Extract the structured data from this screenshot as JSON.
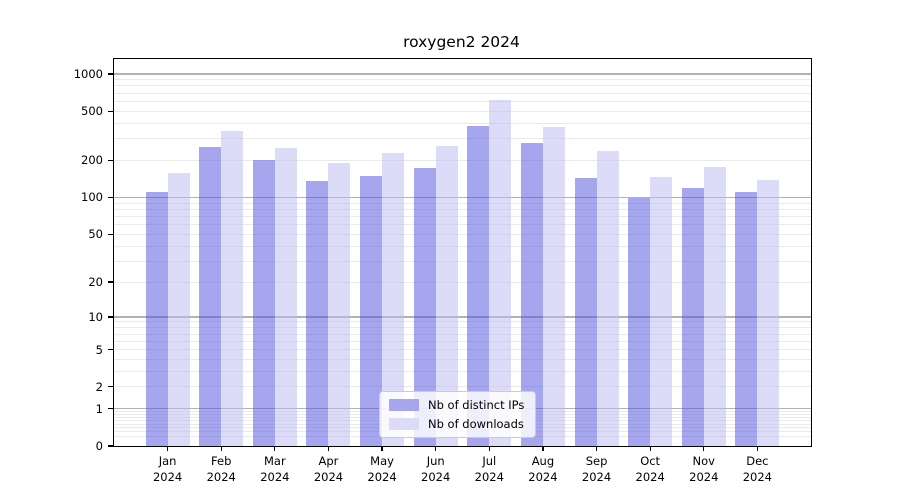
{
  "title": "roxygen2 2024",
  "chart_data": {
    "type": "bar",
    "title": "roxygen2 2024",
    "year": "2024",
    "categories": [
      "Jan",
      "Feb",
      "Mar",
      "Apr",
      "May",
      "Jun",
      "Jul",
      "Aug",
      "Sep",
      "Oct",
      "Nov",
      "Dec"
    ],
    "series": [
      {
        "name": "Nb of distinct IPs",
        "color": "#a6a6ef",
        "fill": "rgba(77,77,223,0.5)",
        "values": [
          110,
          255,
          200,
          137,
          150,
          174,
          380,
          275,
          143,
          100,
          120,
          110
        ]
      },
      {
        "name": "Nb of downloads",
        "color": "#dcdcf8",
        "fill": "rgba(185,185,241,0.5)",
        "values": [
          157,
          345,
          250,
          189,
          230,
          262,
          615,
          370,
          238,
          148,
          176,
          140
        ]
      }
    ],
    "y_ticks": [
      0,
      1,
      2,
      5,
      10,
      20,
      50,
      100,
      200,
      500,
      1000
    ],
    "y_major_gridlines": [
      1,
      10,
      100,
      1000
    ],
    "scale": "log1p",
    "ylim": [
      0,
      1320
    ],
    "grid": "both",
    "legend_position": "lower-center",
    "colors": {
      "major_grid": "#b2b2b2",
      "minor_grid": "#eaeaea",
      "axis": "#000000",
      "background": "#ffffff"
    }
  },
  "legend": {
    "items": [
      {
        "label": "Nb of distinct IPs"
      },
      {
        "label": "Nb of downloads"
      }
    ]
  }
}
